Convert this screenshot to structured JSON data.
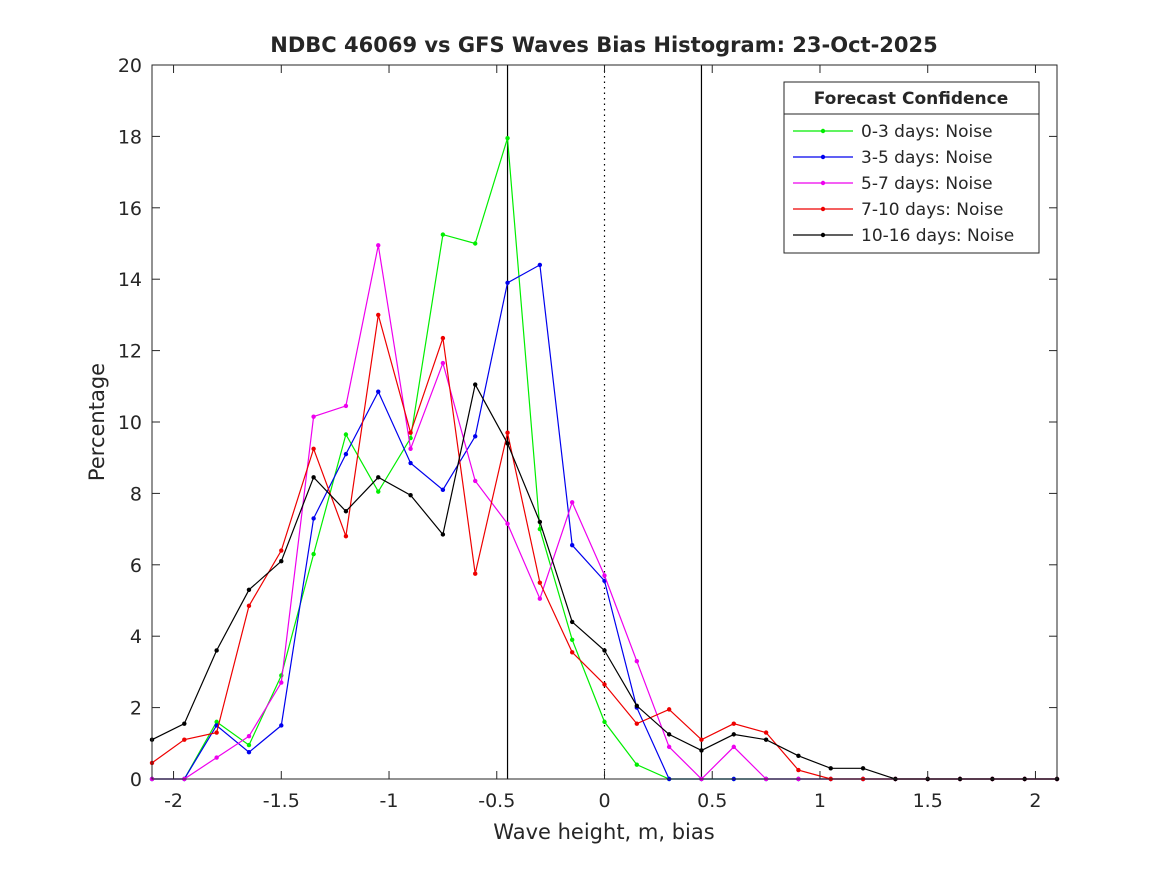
{
  "chart_data": {
    "type": "line",
    "title": "NDBC 46069 vs GFS Waves Bias Histogram: 23-Oct-2025",
    "xlabel": "Wave height, m, bias",
    "ylabel": "Percentage",
    "xlim": [
      -2.1,
      2.1
    ],
    "ylim": [
      0,
      20
    ],
    "xticks": [
      -2,
      -1.5,
      -1,
      -0.5,
      0,
      0.5,
      1,
      1.5,
      2
    ],
    "xtick_labels": [
      "-2",
      "-1.5",
      "-1",
      "-0.5",
      "0",
      "0.5",
      "1",
      "1.5",
      "2"
    ],
    "yticks": [
      0,
      2,
      4,
      6,
      8,
      10,
      12,
      14,
      16,
      18,
      20
    ],
    "ytick_labels": [
      "0",
      "2",
      "4",
      "6",
      "8",
      "10",
      "12",
      "14",
      "16",
      "18",
      "20"
    ],
    "grid": false,
    "vertical_lines": [
      {
        "x": -0.45,
        "style": "solid",
        "color": "#000000"
      },
      {
        "x": 0,
        "style": "dotted",
        "color": "#000000"
      },
      {
        "x": 0.45,
        "style": "solid",
        "color": "#000000"
      }
    ],
    "legend": {
      "title": "Forecast Confidence",
      "placement": "top-right"
    },
    "x": [
      -2.1,
      -1.95,
      -1.8,
      -1.65,
      -1.5,
      -1.35,
      -1.2,
      -1.05,
      -0.9,
      -0.75,
      -0.6,
      -0.45,
      -0.3,
      -0.15,
      0,
      0.15,
      0.3,
      0.45,
      0.6,
      0.75,
      0.9,
      1.05,
      1.2,
      1.35,
      1.5,
      1.65,
      1.8,
      1.95,
      2.1
    ],
    "series": [
      {
        "name": "0-3 days: Noise",
        "color": "#00ee00",
        "values": [
          0,
          0,
          1.6,
          0.95,
          2.9,
          6.3,
          9.65,
          8.05,
          9.55,
          15.25,
          15.0,
          17.95,
          7.0,
          3.9,
          1.6,
          0.4,
          0,
          0,
          0,
          0,
          0,
          0,
          0,
          0,
          0,
          0,
          0,
          0,
          0
        ]
      },
      {
        "name": "3-5 days: Noise",
        "color": "#0000ee",
        "values": [
          0,
          0,
          1.5,
          0.75,
          1.5,
          7.3,
          9.1,
          10.85,
          8.85,
          8.1,
          9.6,
          13.9,
          14.4,
          6.55,
          5.55,
          2.0,
          0,
          0,
          0,
          0,
          0,
          0,
          0,
          0,
          0,
          0,
          0,
          0,
          0
        ]
      },
      {
        "name": "5-7 days: Noise",
        "color": "#ee00ee",
        "values": [
          0,
          0,
          0.6,
          1.2,
          2.7,
          10.15,
          10.45,
          14.95,
          9.25,
          11.65,
          8.35,
          7.15,
          5.05,
          7.75,
          5.7,
          3.3,
          0.9,
          0,
          0.9,
          0,
          0,
          0,
          0,
          0,
          0,
          0,
          0,
          0,
          0
        ]
      },
      {
        "name": "7-10 days: Noise",
        "color": "#ee0000",
        "values": [
          0.45,
          1.1,
          1.3,
          4.85,
          6.4,
          9.25,
          6.8,
          13.0,
          9.7,
          12.35,
          5.75,
          9.7,
          5.5,
          3.55,
          2.65,
          1.55,
          1.95,
          1.1,
          1.55,
          1.3,
          0.25,
          0,
          0,
          0,
          0,
          0,
          0,
          0,
          0
        ]
      },
      {
        "name": "10-16 days: Noise",
        "color": "#000000",
        "values": [
          1.1,
          1.55,
          3.6,
          5.3,
          6.1,
          8.45,
          7.5,
          8.45,
          7.95,
          6.85,
          11.05,
          9.4,
          7.2,
          4.4,
          3.6,
          2.05,
          1.25,
          0.8,
          1.25,
          1.1,
          0.65,
          0.3,
          0.3,
          0,
          0,
          0,
          0,
          0,
          0
        ]
      }
    ]
  }
}
